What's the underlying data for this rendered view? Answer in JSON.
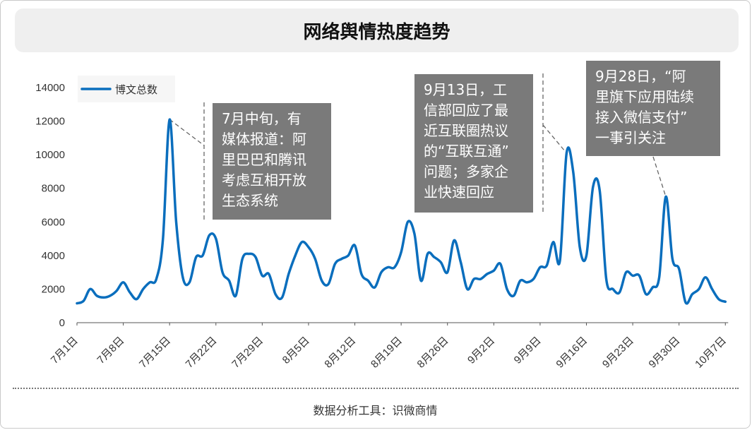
{
  "title": "网络舆情热度趋势",
  "footer": "数据分析工具：识微商情",
  "chart_data": {
    "type": "line",
    "title": "网络舆情热度趋势",
    "xlabel": "",
    "ylabel": "",
    "ylim": [
      0,
      14000
    ],
    "yticks": [
      0,
      2000,
      4000,
      6000,
      8000,
      10000,
      12000,
      14000
    ],
    "xtick_labels": [
      "7月1日",
      "7月8日",
      "7月15日",
      "7月22日",
      "7月29日",
      "8月5日",
      "8月12日",
      "8月19日",
      "8月26日",
      "9月2日",
      "9月9日",
      "9月16日",
      "9月23日",
      "9月30日",
      "10月7日"
    ],
    "legend": {
      "position": "top-left"
    },
    "grid": false,
    "colors": {
      "line": "#0a6ebd",
      "annotation_bg": "#7a7a7a"
    },
    "series": [
      {
        "name": "博文总数",
        "x": [
          "7月1日",
          "7月2日",
          "7月3日",
          "7月4日",
          "7月5日",
          "7月6日",
          "7月7日",
          "7月8日",
          "7月9日",
          "7月10日",
          "7月11日",
          "7月12日",
          "7月13日",
          "7月14日",
          "7月15日",
          "7月16日",
          "7月17日",
          "7月18日",
          "7月19日",
          "7月20日",
          "7月21日",
          "7月22日",
          "7月23日",
          "7月24日",
          "7月25日",
          "7月26日",
          "7月27日",
          "7月28日",
          "7月29日",
          "7月30日",
          "7月31日",
          "8月1日",
          "8月2日",
          "8月3日",
          "8月4日",
          "8月5日",
          "8月6日",
          "8月7日",
          "8月8日",
          "8月9日",
          "8月10日",
          "8月11日",
          "8月12日",
          "8月13日",
          "8月14日",
          "8月15日",
          "8月16日",
          "8月17日",
          "8月18日",
          "8月19日",
          "8月20日",
          "8月21日",
          "8月22日",
          "8月23日",
          "8月24日",
          "8月25日",
          "8月26日",
          "8月27日",
          "8月28日",
          "8月29日",
          "8月30日",
          "8月31日",
          "9月1日",
          "9月2日",
          "9月3日",
          "9月4日",
          "9月5日",
          "9月6日",
          "9月7日",
          "9月8日",
          "9月9日",
          "9月10日",
          "9月11日",
          "9月12日",
          "9月13日",
          "9月14日",
          "9月15日",
          "9月16日",
          "9月17日",
          "9月18日",
          "9月19日",
          "9月20日",
          "9月21日",
          "9月22日",
          "9月23日",
          "9月24日",
          "9月25日",
          "9月26日",
          "9月27日",
          "9月28日",
          "9月29日",
          "9月30日",
          "10月1日",
          "10月2日",
          "10月3日",
          "10月4日",
          "10月5日",
          "10月6日",
          "10月7日"
        ],
        "values": [
          1150,
          1300,
          2000,
          1600,
          1500,
          1600,
          1900,
          2400,
          1800,
          1400,
          2000,
          2400,
          2600,
          5000,
          12100,
          6000,
          2700,
          2400,
          3900,
          4000,
          5200,
          5000,
          3000,
          2500,
          1600,
          3800,
          4100,
          3900,
          2800,
          2900,
          1700,
          1500,
          2900,
          4000,
          4800,
          4500,
          3800,
          2500,
          2300,
          3500,
          3800,
          4000,
          4600,
          2900,
          2500,
          2100,
          3000,
          3300,
          3300,
          4200,
          6000,
          5300,
          2500,
          4100,
          3900,
          3600,
          3000,
          4900,
          3600,
          2000,
          2600,
          2600,
          2900,
          3100,
          3500,
          2000,
          1600,
          2500,
          2400,
          2600,
          3300,
          3400,
          4800,
          3700,
          10100,
          9000,
          4500,
          4000,
          8100,
          7900,
          2600,
          2000,
          1800,
          3000,
          2800,
          2800,
          1700,
          2100,
          2700,
          7500,
          3800,
          3200,
          1200,
          1700,
          2000,
          2700,
          2000,
          1400,
          1250
        ]
      }
    ],
    "annotations": [
      {
        "text": "7月中旬，有\n媒体报道：阿\n里巴巴和腾讯\n考虑互相开放\n生态系统"
      },
      {
        "text": "9月13日，工\n信部回应了最\n近互联圈热议\n的“互联互通”\n问题；多家企\n业快速回应"
      },
      {
        "text": "9月28日，“阿\n里旗下应用陆续\n接入微信支付”\n一事引关注"
      }
    ]
  }
}
